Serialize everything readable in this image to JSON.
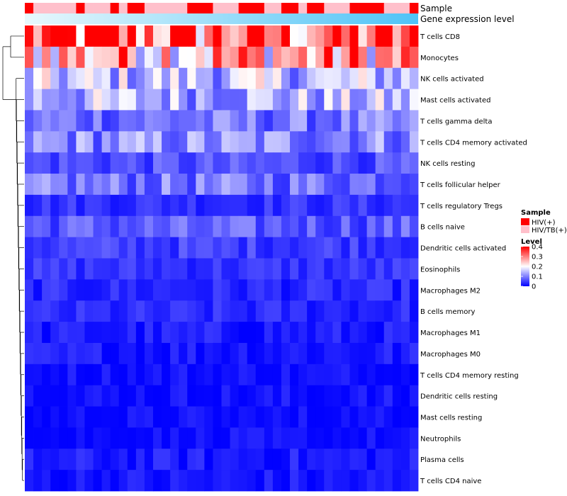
{
  "chart_data": {
    "type": "heatmap",
    "title": "",
    "n_columns": 46,
    "annotation_rows": [
      {
        "label": "Sample"
      },
      {
        "label": "Gene expression level"
      }
    ],
    "sample_groups": [
      "HIV(+)",
      "HIV/TB(+)",
      "HIV/TB(+)",
      "HIV/TB(+)",
      "HIV/TB(+)",
      "HIV/TB(+)",
      "HIV(+)",
      "HIV/TB(+)",
      "HIV/TB(+)",
      "HIV/TB(+)",
      "HIV(+)",
      "HIV/TB(+)",
      "HIV(+)",
      "HIV(+)",
      "HIV/TB(+)",
      "HIV/TB(+)",
      "HIV/TB(+)",
      "HIV/TB(+)",
      "HIV/TB(+)",
      "HIV(+)",
      "HIV(+)",
      "HIV(+)",
      "HIV/TB(+)",
      "HIV/TB(+)",
      "HIV/TB(+)",
      "HIV(+)",
      "HIV(+)",
      "HIV(+)",
      "HIV/TB(+)",
      "HIV/TB(+)",
      "HIV(+)",
      "HIV(+)",
      "HIV/TB(+)",
      "HIV(+)",
      "HIV(+)",
      "HIV/TB(+)",
      "HIV/TB(+)",
      "HIV/TB(+)",
      "HIV(+)",
      "HIV(+)",
      "HIV(+)",
      "HIV(+)",
      "HIV/TB(+)",
      "HIV/TB(+)",
      "HIV/TB(+)",
      "HIV(+)"
    ],
    "rows": [
      "T cells CD8",
      "Monocytes",
      "NK cells activated",
      "Mast cells activated",
      "T cells gamma delta",
      "T cells CD4 memory activated",
      "NK cells resting",
      "T cells follicular helper",
      "T cells regulatory  Tregs",
      "B cells naive",
      "Dendritic cells activated",
      "Eosinophils",
      "Macrophages M2",
      "B cells memory",
      "Macrophages M1",
      "Macrophages M0",
      "T cells CD4 memory resting",
      "Dendritic cells resting",
      "Mast cells resting",
      "Neutrophils",
      "Plasma cells",
      "T cells CD4 naive"
    ],
    "row_means": [
      0.33,
      0.27,
      0.15,
      0.14,
      0.09,
      0.11,
      0.06,
      0.09,
      0.04,
      0.07,
      0.05,
      0.04,
      0.03,
      0.03,
      0.02,
      0.02,
      0.01,
      0.01,
      0.005,
      0.005,
      0.02,
      0.015
    ],
    "value_range": [
      0,
      0.4
    ],
    "dendrogram": "rows",
    "legends": {
      "sample": {
        "title": "Sample",
        "entries": [
          {
            "label": "HIV(+)",
            "color": "#ff0000"
          },
          {
            "label": "HIV/TB(+)",
            "color": "#ffc0cb"
          }
        ]
      },
      "level": {
        "title": "Level",
        "ticks": [
          "0.4",
          "0.3",
          "0.2",
          "0.1",
          "0"
        ],
        "tick_values": [
          0.4,
          0.3,
          0.2,
          0.1,
          0
        ]
      }
    },
    "colors": {
      "low": "#0000ff",
      "mid": "#ffffff",
      "high": "#ff0000",
      "expression_low": "#e8f8fc",
      "expression_high": "#4fc3f7"
    }
  }
}
